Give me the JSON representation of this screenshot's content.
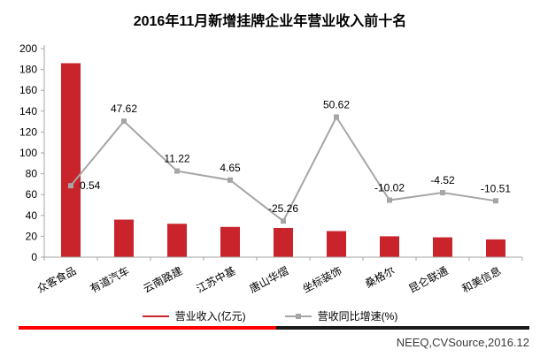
{
  "title": "2016年11月新增挂牌企业年营业收入前十名",
  "source": "NEEQ,CVSource,2016.12",
  "legend": {
    "revenue_label": "营业收入(亿元)",
    "growth_label": "营收同比增速(%)"
  },
  "colors": {
    "bar_red": "#C9242C",
    "line_gray": "#A6A6A6",
    "axis_gray": "#A6A6A6",
    "divider_red": "#FF0000",
    "divider_black": "#1A1A1A",
    "text_black": "#000000"
  },
  "chart_data": {
    "type": "bar",
    "subtype": "bar-line-combo",
    "title": "2016年11月新增挂牌企业年营业收入前十名",
    "categories": [
      "众客食品",
      "有道汽车",
      "云南路建",
      "江苏中基",
      "唐山华熠",
      "坐标装饰",
      "桑格尔",
      "昆仑联通",
      "和美信息"
    ],
    "series": [
      {
        "name": "营业收入(亿元)",
        "type": "bar",
        "axis": "left",
        "color": "#C9242C",
        "values": [
          186,
          36,
          32,
          29,
          28,
          25,
          20,
          19,
          17
        ]
      },
      {
        "name": "营收同比增速(%)",
        "type": "line",
        "axis": "right-hidden",
        "color": "#A6A6A6",
        "values": [
          0.54,
          47.62,
          11.22,
          4.65,
          -25.26,
          50.62,
          -10.02,
          -4.52,
          -10.51
        ],
        "point_labels": [
          "0.54",
          "47.62",
          "11.22",
          "4.65",
          "-25.26",
          "50.62",
          "-10.02",
          "-4.52",
          "-10.51"
        ]
      }
    ],
    "xlabel": "",
    "ylabel": "",
    "ylim": [
      0,
      200
    ],
    "y_ticks": [
      0,
      20,
      40,
      60,
      80,
      100,
      120,
      140,
      160,
      180,
      200
    ],
    "grid": false,
    "legend_position": "bottom"
  }
}
